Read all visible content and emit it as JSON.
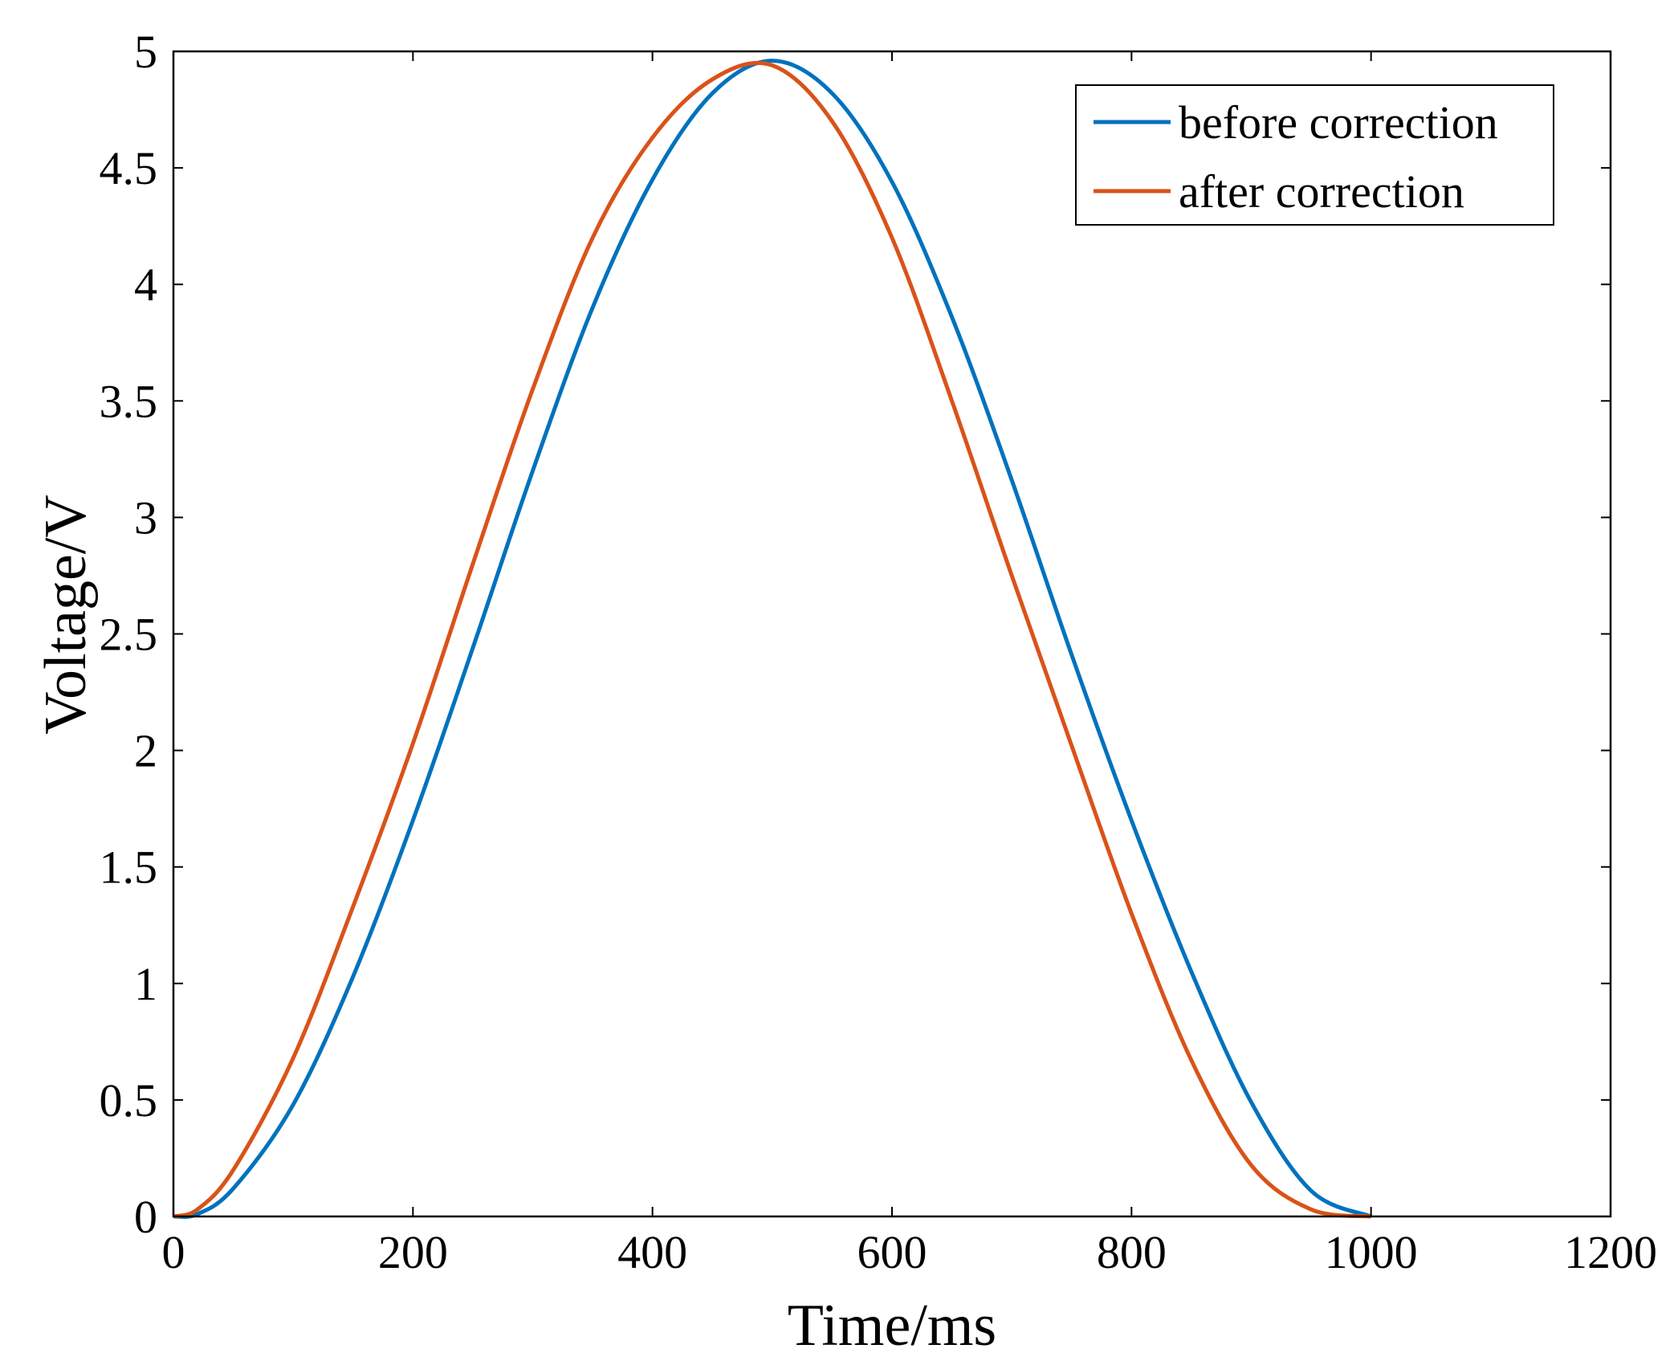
{
  "chart_data": {
    "type": "line",
    "title": "",
    "xlabel": "Time/ms",
    "ylabel": "Voltage/V",
    "xlim": [
      0,
      1200
    ],
    "ylim": [
      0,
      5
    ],
    "xticks": [
      0,
      200,
      400,
      600,
      800,
      1000,
      1200
    ],
    "xtick_labels": [
      "0",
      "200",
      "400",
      "600",
      "800",
      "1000",
      "1200"
    ],
    "yticks": [
      0,
      0.5,
      1,
      1.5,
      2,
      2.5,
      3,
      3.5,
      4,
      4.5,
      5
    ],
    "ytick_labels": [
      "0",
      "0.5",
      "1",
      "1.5",
      "2",
      "2.5",
      "3",
      "3.5",
      "4",
      "4.5",
      "5"
    ],
    "grid": false,
    "legend_position": "top-right",
    "series": [
      {
        "name": "before correction",
        "color": "#0072BD",
        "x": [
          0,
          20,
          50,
          100,
          150,
          200,
          250,
          300,
          350,
          400,
          450,
          500,
          550,
          600,
          650,
          700,
          750,
          800,
          850,
          900,
          950,
          1000
        ],
        "y": [
          0,
          0.01,
          0.12,
          0.48,
          1.03,
          1.7,
          2.44,
          3.2,
          3.9,
          4.45,
          4.82,
          4.96,
          4.82,
          4.44,
          3.86,
          3.16,
          2.41,
          1.7,
          1.05,
          0.49,
          0.11,
          0
        ]
      },
      {
        "name": "after correction",
        "color": "#D95319",
        "x": [
          0,
          20,
          50,
          100,
          150,
          200,
          250,
          300,
          350,
          400,
          450,
          500,
          550,
          600,
          650,
          700,
          750,
          800,
          850,
          900,
          950,
          1000
        ],
        "y": [
          0,
          0.03,
          0.2,
          0.68,
          1.33,
          2.03,
          2.8,
          3.55,
          4.2,
          4.63,
          4.88,
          4.94,
          4.7,
          4.2,
          3.5,
          2.75,
          2.02,
          1.3,
          0.67,
          0.22,
          0.03,
          0
        ]
      }
    ]
  }
}
